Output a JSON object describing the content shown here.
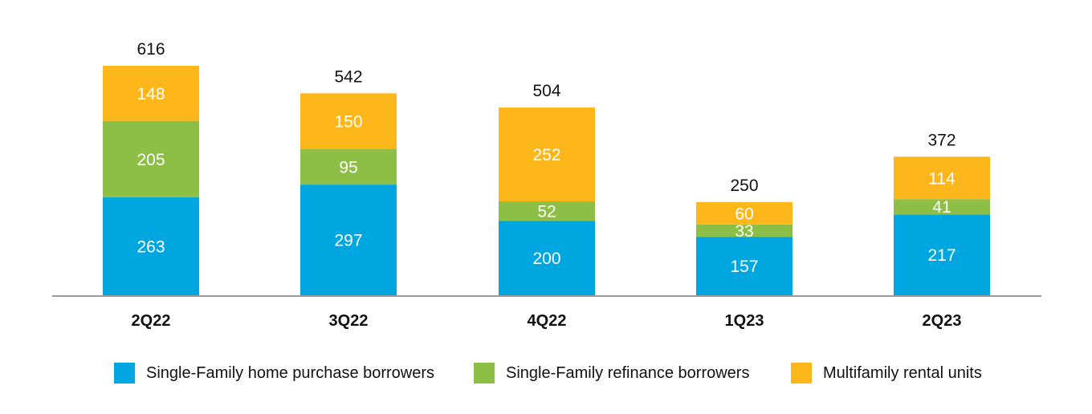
{
  "chart_data": {
    "type": "bar",
    "stacked": true,
    "categories": [
      "2Q22",
      "3Q22",
      "4Q22",
      "1Q23",
      "2Q23"
    ],
    "series": [
      {
        "name": "Single-Family home purchase borrowers",
        "color": "#00a6e0",
        "values": [
          263,
          297,
          200,
          157,
          217
        ]
      },
      {
        "name": "Single-Family refinance borrowers",
        "color": "#8dbe45",
        "values": [
          205,
          95,
          52,
          33,
          41
        ]
      },
      {
        "name": "Multifamily rental units",
        "color": "#fdb71a",
        "values": [
          148,
          150,
          252,
          60,
          114
        ]
      }
    ],
    "totals": [
      616,
      542,
      504,
      250,
      372
    ],
    "ylim": [
      0,
      616
    ],
    "grid": false,
    "legend_position": "bottom"
  }
}
